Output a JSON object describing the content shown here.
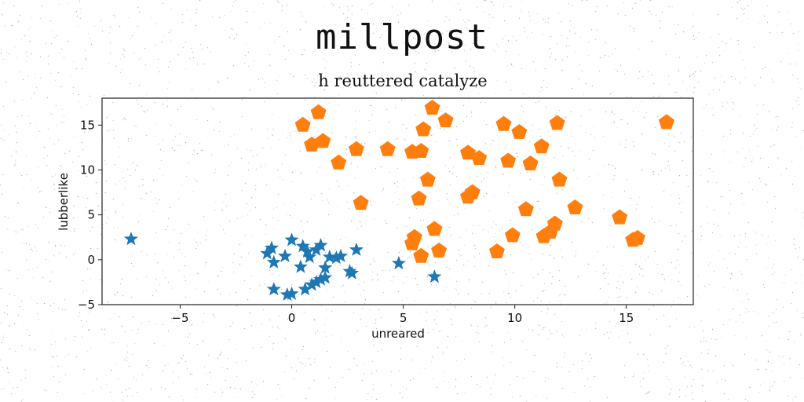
{
  "header": {
    "title": "millpost"
  },
  "chart_data": {
    "type": "scatter",
    "title": "h reuttered catalyze",
    "xlabel": "unreared",
    "ylabel": "lubberlike",
    "xlim": [
      -8.5,
      18
    ],
    "ylim": [
      -5,
      18
    ],
    "xticks": [
      -5,
      0,
      5,
      10,
      15
    ],
    "yticks": [
      -5,
      0,
      5,
      10,
      15
    ],
    "grid": false,
    "legend": "none",
    "series": [
      {
        "marker": "star",
        "color": "#1f77b4",
        "points": [
          [
            -7.2,
            2.3
          ],
          [
            -1.1,
            0.7
          ],
          [
            -0.9,
            1.3
          ],
          [
            -0.8,
            -0.3
          ],
          [
            -0.3,
            0.4
          ],
          [
            0.0,
            2.2
          ],
          [
            0.5,
            1.5
          ],
          [
            0.7,
            0.9
          ],
          [
            0.8,
            0.3
          ],
          [
            1.1,
            1.1
          ],
          [
            1.3,
            1.6
          ],
          [
            0.4,
            -0.8
          ],
          [
            1.5,
            -0.9
          ],
          [
            1.7,
            0.3
          ],
          [
            2.0,
            0.2
          ],
          [
            2.2,
            0.4
          ],
          [
            2.9,
            1.1
          ],
          [
            1.3,
            -2.2
          ],
          [
            1.5,
            -2.0
          ],
          [
            1.1,
            -2.5
          ],
          [
            0.9,
            -2.8
          ],
          [
            0.6,
            -3.3
          ],
          [
            -0.2,
            -3.9
          ],
          [
            0.0,
            -3.8
          ],
          [
            -0.8,
            -3.3
          ],
          [
            2.6,
            -1.3
          ],
          [
            2.7,
            -1.5
          ],
          [
            4.8,
            -0.4
          ],
          [
            6.4,
            -1.9
          ]
        ]
      },
      {
        "marker": "pentagon",
        "color": "#ff7f0e",
        "points": [
          [
            0.5,
            15.0
          ],
          [
            1.2,
            16.4
          ],
          [
            0.9,
            12.8
          ],
          [
            1.4,
            13.2
          ],
          [
            2.1,
            10.8
          ],
          [
            2.9,
            12.3
          ],
          [
            3.1,
            6.3
          ],
          [
            4.3,
            12.3
          ],
          [
            5.4,
            12.0
          ],
          [
            5.8,
            12.1
          ],
          [
            6.3,
            16.9
          ],
          [
            5.9,
            14.5
          ],
          [
            6.9,
            15.5
          ],
          [
            6.1,
            8.9
          ],
          [
            5.7,
            6.8
          ],
          [
            5.5,
            2.5
          ],
          [
            5.4,
            1.8
          ],
          [
            5.8,
            0.4
          ],
          [
            6.4,
            3.4
          ],
          [
            6.6,
            1.0
          ],
          [
            7.9,
            11.9
          ],
          [
            8.4,
            11.3
          ],
          [
            7.9,
            7.0
          ],
          [
            8.1,
            7.5
          ],
          [
            9.5,
            15.1
          ],
          [
            10.2,
            14.2
          ],
          [
            11.2,
            12.6
          ],
          [
            11.9,
            15.2
          ],
          [
            9.7,
            11.0
          ],
          [
            10.7,
            10.7
          ],
          [
            12.0,
            8.9
          ],
          [
            10.5,
            5.6
          ],
          [
            12.7,
            5.8
          ],
          [
            9.9,
            2.7
          ],
          [
            9.2,
            0.9
          ],
          [
            11.3,
            2.6
          ],
          [
            11.6,
            3.1
          ],
          [
            11.8,
            4.0
          ],
          [
            14.7,
            4.7
          ],
          [
            15.3,
            2.2
          ],
          [
            15.5,
            2.4
          ],
          [
            16.8,
            15.3
          ]
        ]
      }
    ]
  }
}
